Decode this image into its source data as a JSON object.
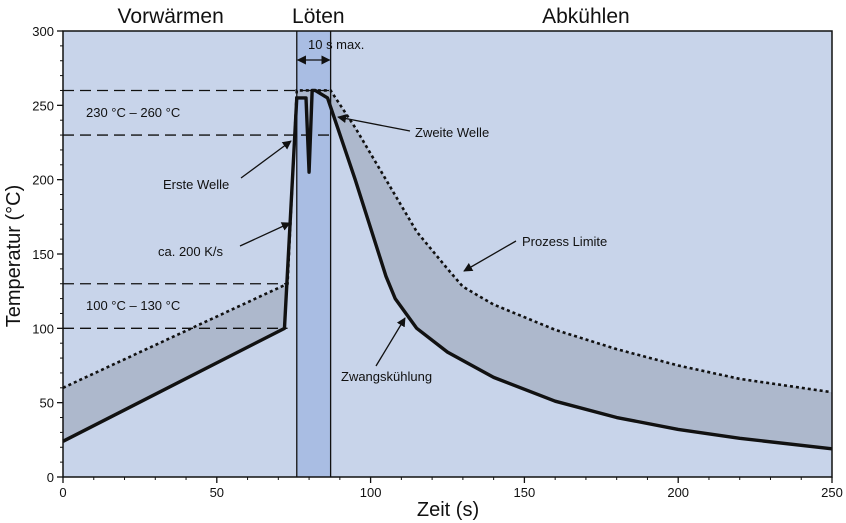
{
  "chart_data": {
    "type": "line",
    "xlabel": "Zeit (s)",
    "ylabel": "Temperatur (°C)",
    "xlim": [
      0,
      250
    ],
    "ylim": [
      0,
      300
    ],
    "xticks": [
      0,
      50,
      100,
      150,
      200,
      250
    ],
    "yticks": [
      0,
      50,
      100,
      150,
      200,
      250,
      300
    ],
    "colors": {
      "background": "#c8d4ea",
      "solder_band": "#a9bde3",
      "process_window": "#adb8cc",
      "curve": "#111111"
    },
    "phases": [
      {
        "label": "Vorwärmen",
        "x": 35
      },
      {
        "label": "Löten",
        "x": 83
      },
      {
        "label": "Abkühlen",
        "x": 170
      }
    ],
    "solder_window": {
      "x_start": 76,
      "x_end": 87,
      "label": "10 s max."
    },
    "reference_lines": [
      {
        "y": 260,
        "x_end": 87
      },
      {
        "y": 230,
        "x_end": 87
      },
      {
        "y": 130,
        "x_end": 73
      },
      {
        "y": 100,
        "x_end": 73
      }
    ],
    "series": [
      {
        "name": "Prozess Limite",
        "style": "dotted",
        "x": [
          0,
          73,
          76,
          78,
          82,
          87,
          95,
          105,
          115,
          125,
          130,
          140,
          160,
          180,
          200,
          220,
          250
        ],
        "y": [
          60,
          130,
          260,
          260,
          260,
          260,
          235,
          200,
          165,
          140,
          128,
          116,
          99,
          86,
          75,
          66,
          57
        ]
      },
      {
        "name": "Zwangskühlung",
        "style": "solid",
        "x": [
          0,
          72,
          76,
          77,
          79,
          80,
          81,
          82,
          86,
          95,
          105,
          108,
          115,
          125,
          140,
          160,
          180,
          200,
          220,
          250
        ],
        "y": [
          24,
          100,
          255,
          255,
          255,
          205,
          260,
          260,
          255,
          200,
          135,
          120,
          100,
          84,
          67,
          51,
          40,
          32,
          26,
          19
        ]
      }
    ],
    "annotations": [
      {
        "text": "230 °C – 260 °C"
      },
      {
        "text": "100 °C – 130 °C"
      },
      {
        "text": "Erste Welle"
      },
      {
        "text": "ca. 200 K/s"
      },
      {
        "text": "Zweite Welle"
      },
      {
        "text": "Prozess Limite"
      },
      {
        "text": "Zwangskühlung"
      }
    ]
  }
}
